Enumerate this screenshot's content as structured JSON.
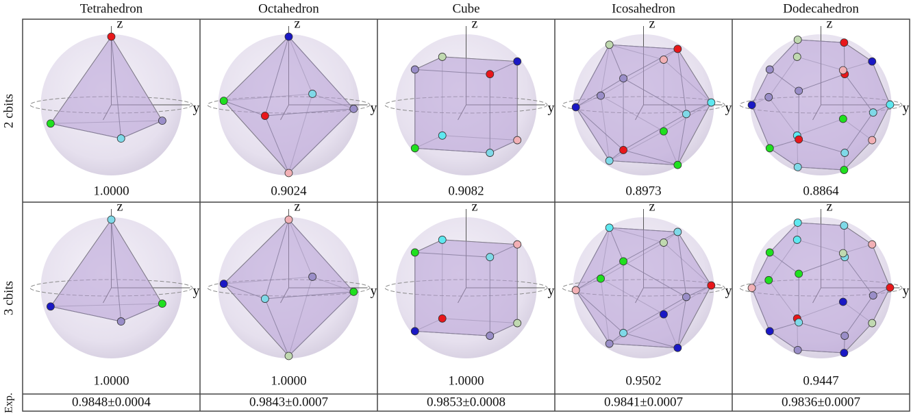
{
  "columns": [
    "Tetrahedron",
    "Octahedron",
    "Cube",
    "Icosahedron",
    "Dodecahedron"
  ],
  "rows": [
    {
      "label": "2 cbits",
      "values": [
        "1.0000",
        "0.9024",
        "0.9082",
        "0.8973",
        "0.8864"
      ]
    },
    {
      "label": "3 cbits",
      "values": [
        "1.0000",
        "1.0000",
        "1.0000",
        "0.9502",
        "0.9447"
      ]
    }
  ],
  "exp": {
    "label": "Exp.",
    "values": [
      "0.9848±0.0004",
      "0.9843±0.0007",
      "0.9853±0.0008",
      "0.9841±0.0007",
      "0.9836±0.0007"
    ]
  },
  "axis_labels": {
    "z": "z",
    "y": "y"
  }
}
